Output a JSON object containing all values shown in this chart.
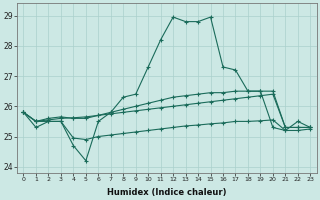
{
  "xlabel": "Humidex (Indice chaleur)",
  "background_color": "#cce8e4",
  "grid_color": "#aad0cc",
  "line_color": "#1a6b5a",
  "x_values": [
    0,
    1,
    2,
    3,
    4,
    5,
    6,
    7,
    8,
    9,
    10,
    11,
    12,
    13,
    14,
    15,
    16,
    17,
    18,
    19,
    20,
    21,
    22,
    23
  ],
  "series1": [
    25.8,
    25.3,
    25.5,
    25.5,
    24.7,
    24.2,
    25.5,
    25.8,
    26.3,
    26.4,
    27.3,
    28.2,
    28.95,
    28.8,
    28.8,
    28.95,
    27.3,
    27.2,
    26.5,
    26.5,
    25.3,
    25.2,
    25.5,
    25.3
  ],
  "series2": [
    25.8,
    25.5,
    25.6,
    25.65,
    25.6,
    25.6,
    25.7,
    25.8,
    25.9,
    26.0,
    26.1,
    26.2,
    26.3,
    26.35,
    26.4,
    26.45,
    26.45,
    26.5,
    26.5,
    26.5,
    26.5,
    25.3,
    25.3,
    25.3
  ],
  "series3": [
    25.8,
    25.5,
    25.55,
    25.6,
    25.62,
    25.65,
    25.7,
    25.75,
    25.8,
    25.85,
    25.9,
    25.95,
    26.0,
    26.05,
    26.1,
    26.15,
    26.2,
    26.25,
    26.3,
    26.35,
    26.4,
    25.3,
    25.3,
    25.3
  ],
  "series4": [
    25.8,
    25.5,
    25.5,
    25.5,
    24.95,
    24.9,
    25.0,
    25.05,
    25.1,
    25.15,
    25.2,
    25.25,
    25.3,
    25.35,
    25.38,
    25.42,
    25.45,
    25.5,
    25.5,
    25.52,
    25.55,
    25.2,
    25.2,
    25.25
  ],
  "ylim": [
    23.8,
    29.4
  ],
  "yticks": [
    24,
    25,
    26,
    27,
    28,
    29
  ],
  "xticks": [
    0,
    1,
    2,
    3,
    4,
    5,
    6,
    7,
    8,
    9,
    10,
    11,
    12,
    13,
    14,
    15,
    16,
    17,
    18,
    19,
    20,
    21,
    22,
    23
  ]
}
